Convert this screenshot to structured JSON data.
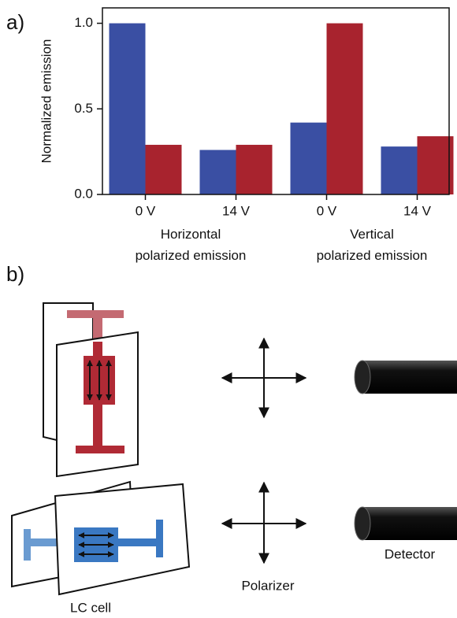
{
  "panel_a": "a)",
  "panel_b": "b)",
  "chart_data": {
    "type": "bar",
    "ylabel": "Normalized emission",
    "categories": [
      "0 V",
      "14 V",
      "0 V",
      "14 V"
    ],
    "groups": [
      "Horizontal\npolarized emission",
      "Vertical\npolarized emission"
    ],
    "series": [
      {
        "color": "#3a4fa3",
        "values": [
          1.0,
          0.26,
          0.42,
          0.28
        ]
      },
      {
        "color": "#a8232e",
        "values": [
          0.29,
          0.29,
          1.0,
          0.34
        ]
      }
    ],
    "ylim": [
      0,
      1.09
    ],
    "yticks": [
      {
        "value": 0,
        "label": "0.0"
      },
      {
        "value": 0.5,
        "label": "0.5"
      },
      {
        "value": 1,
        "label": "1.0"
      }
    ]
  },
  "diagram": {
    "polarizer": "Polarizer",
    "detector": "Detector",
    "lc_cell": "LC cell"
  }
}
